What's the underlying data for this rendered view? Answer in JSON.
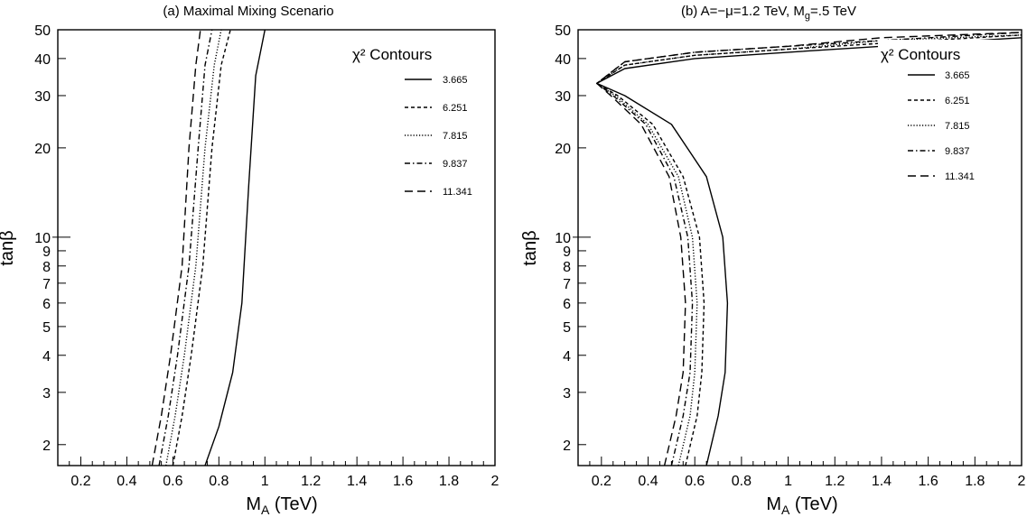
{
  "chart_data": [
    {
      "type": "line",
      "title": "(a) Maximal Mixing Scenario",
      "xlabel": {
        "main": "M",
        "sub": "A",
        "rest": " (TeV)"
      },
      "ylabel": "tanβ",
      "xlim": [
        0.1,
        2.0
      ],
      "ylim": [
        1.7,
        50
      ],
      "yscale": "log",
      "xticks": [
        "0.2",
        "0.4",
        "0.6",
        "0.8",
        "1",
        "1.2",
        "1.4",
        "1.6",
        "1.8",
        "2"
      ],
      "xtick_values": [
        0.2,
        0.4,
        0.6,
        0.8,
        1.0,
        1.2,
        1.4,
        1.6,
        1.8,
        2.0
      ],
      "yticks": [
        "2",
        "3",
        "4",
        "5",
        "6",
        "7",
        "8",
        "9",
        "10",
        "20",
        "30",
        "40",
        "50"
      ],
      "ytick_values": [
        2,
        3,
        4,
        5,
        6,
        7,
        8,
        9,
        10,
        20,
        30,
        40,
        50
      ],
      "legend": {
        "title": "χ² Contours",
        "position": "top-right"
      },
      "series": [
        {
          "name": "3.665",
          "dash": "solid",
          "x": [
            0.74,
            0.8,
            0.86,
            0.9,
            0.93,
            0.96,
            1.0
          ],
          "y": [
            1.7,
            2.3,
            3.5,
            6.0,
            15,
            35,
            50
          ]
        },
        {
          "name": "6.251",
          "dash": "dash-short",
          "x": [
            0.6,
            0.64,
            0.68,
            0.73,
            0.77,
            0.81,
            0.85
          ],
          "y": [
            1.7,
            2.5,
            4.0,
            8.0,
            20,
            38,
            50
          ]
        },
        {
          "name": "7.815",
          "dash": "dot",
          "x": [
            0.57,
            0.61,
            0.65,
            0.7,
            0.74,
            0.78,
            0.81
          ],
          "y": [
            1.7,
            2.5,
            4.0,
            8.0,
            20,
            38,
            50
          ]
        },
        {
          "name": "9.837",
          "dash": "dashdot",
          "x": [
            0.54,
            0.58,
            0.62,
            0.67,
            0.71,
            0.74,
            0.77
          ],
          "y": [
            1.7,
            2.5,
            4.0,
            8.0,
            20,
            38,
            50
          ]
        },
        {
          "name": "11.341",
          "dash": "dash-long",
          "x": [
            0.51,
            0.55,
            0.59,
            0.64,
            0.67,
            0.7,
            0.72
          ],
          "y": [
            1.7,
            2.5,
            4.0,
            8.0,
            20,
            38,
            50
          ]
        }
      ]
    },
    {
      "type": "line",
      "title": {
        "part1": "(b) A=−μ=1.2 TeV, M",
        "sub": "g",
        "part2": "=.5 TeV"
      },
      "xlabel": {
        "main": "M",
        "sub": "A",
        "rest": " (TeV)"
      },
      "ylabel": "tanβ",
      "xlim": [
        0.1,
        2.0
      ],
      "ylim": [
        1.7,
        50
      ],
      "yscale": "log",
      "xticks": [
        "0.2",
        "0.4",
        "0.6",
        "0.8",
        "1",
        "1.2",
        "1.4",
        "1.6",
        "1.8",
        "2"
      ],
      "xtick_values": [
        0.2,
        0.4,
        0.6,
        0.8,
        1.0,
        1.2,
        1.4,
        1.6,
        1.8,
        2.0
      ],
      "yticks": [
        "2",
        "3",
        "4",
        "5",
        "6",
        "7",
        "8",
        "9",
        "10",
        "20",
        "30",
        "40",
        "50"
      ],
      "ytick_values": [
        2,
        3,
        4,
        5,
        6,
        7,
        8,
        9,
        10,
        20,
        30,
        40,
        50
      ],
      "legend": {
        "title": "χ² Contours",
        "position": "top-right"
      },
      "series": [
        {
          "name": "3.665",
          "dash": "solid",
          "x": [
            0.65,
            0.7,
            0.73,
            0.74,
            0.72,
            0.65,
            0.5,
            0.3,
            0.18,
            0.3,
            0.6,
            1.0,
            1.4,
            2.0
          ],
          "y": [
            1.7,
            2.5,
            3.5,
            6.0,
            10,
            16,
            24,
            30,
            33,
            37,
            40,
            42,
            44,
            47
          ]
        },
        {
          "name": "6.251",
          "dash": "dash-short",
          "x": [
            0.56,
            0.61,
            0.63,
            0.64,
            0.62,
            0.55,
            0.42,
            0.27,
            0.18,
            0.3,
            0.6,
            1.0,
            1.4,
            2.0
          ],
          "y": [
            1.7,
            2.5,
            3.5,
            6.0,
            10,
            16,
            24,
            30,
            33,
            38,
            41,
            43,
            45,
            48
          ]
        },
        {
          "name": "7.815",
          "dash": "dot",
          "x": [
            0.53,
            0.58,
            0.6,
            0.61,
            0.59,
            0.53,
            0.4,
            0.26,
            0.18,
            0.3,
            0.6,
            1.0,
            1.4,
            2.0
          ],
          "y": [
            1.7,
            2.5,
            3.5,
            6.0,
            10,
            16,
            24,
            30,
            33,
            38,
            41,
            43,
            46,
            48
          ]
        },
        {
          "name": "9.837",
          "dash": "dashdot",
          "x": [
            0.5,
            0.55,
            0.58,
            0.59,
            0.57,
            0.51,
            0.39,
            0.25,
            0.18,
            0.3,
            0.6,
            1.0,
            1.4,
            2.0
          ],
          "y": [
            1.7,
            2.5,
            3.5,
            6.0,
            10,
            16,
            24,
            30,
            33,
            39,
            42,
            44,
            46,
            49
          ]
        },
        {
          "name": "11.341",
          "dash": "dash-long",
          "x": [
            0.47,
            0.52,
            0.55,
            0.56,
            0.54,
            0.49,
            0.37,
            0.24,
            0.18,
            0.3,
            0.6,
            1.0,
            1.4,
            2.0
          ],
          "y": [
            1.7,
            2.5,
            3.5,
            6.0,
            10,
            16,
            24,
            30,
            33,
            39,
            42,
            44,
            47,
            49
          ]
        }
      ]
    }
  ]
}
